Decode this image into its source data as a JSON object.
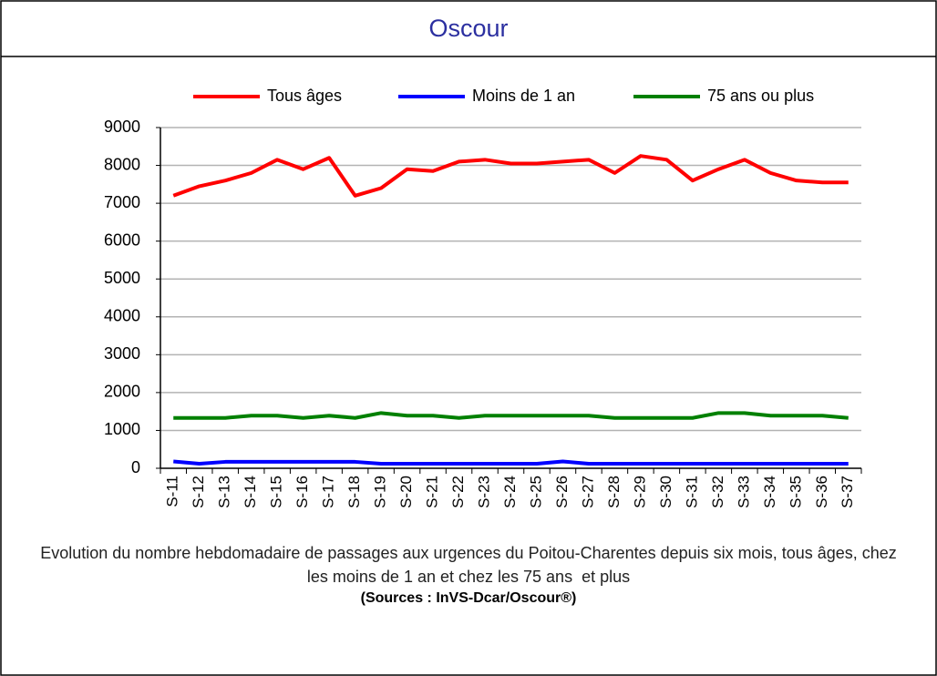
{
  "panel_title": "Oscour",
  "chart_data": {
    "type": "line",
    "categories": [
      "S-11",
      "S-12",
      "S-13",
      "S-14",
      "S-15",
      "S-16",
      "S-17",
      "S-18",
      "S-19",
      "S-20",
      "S-21",
      "S-22",
      "S-23",
      "S-24",
      "S-25",
      "S-26",
      "S-27",
      "S-28",
      "S-29",
      "S-30",
      "S-31",
      "S-32",
      "S-33",
      "S-34",
      "S-35",
      "S-36",
      "S-37"
    ],
    "series": [
      {
        "name": "Tous âges",
        "color": "#ff0000",
        "values": [
          7200,
          7450,
          7600,
          7800,
          8150,
          7900,
          8200,
          7200,
          7400,
          7900,
          7850,
          8100,
          8150,
          8050,
          8050,
          8100,
          8150,
          7800,
          8250,
          8150,
          7600,
          7900,
          8150,
          7800,
          7600,
          7550,
          7550
        ]
      },
      {
        "name": "Moins de 1 an",
        "color": "#0000ff",
        "values": [
          180,
          120,
          170,
          170,
          170,
          170,
          170,
          170,
          120,
          120,
          120,
          120,
          120,
          120,
          120,
          180,
          120,
          120,
          120,
          120,
          120,
          120,
          120,
          120,
          120,
          120,
          120
        ]
      },
      {
        "name": "75 ans ou plus",
        "color": "#008000",
        "values": [
          1330,
          1330,
          1330,
          1390,
          1390,
          1330,
          1390,
          1330,
          1460,
          1390,
          1390,
          1330,
          1390,
          1390,
          1390,
          1390,
          1390,
          1330,
          1330,
          1330,
          1330,
          1460,
          1460,
          1390,
          1390,
          1390,
          1330
        ]
      }
    ],
    "ylim": [
      0,
      9000
    ],
    "yticks": [
      0,
      1000,
      2000,
      3000,
      4000,
      5000,
      6000,
      7000,
      8000,
      9000
    ],
    "grid": true,
    "legend": "top",
    "caption": "Evolution du nombre hebdomadaire de passages aux urgences du Poitou-Charentes depuis six mois, tous âges, chez les moins de 1 an et chez les 75 ans  et plus",
    "source": "(Sources : InVS-Dcar/Oscour®)"
  }
}
